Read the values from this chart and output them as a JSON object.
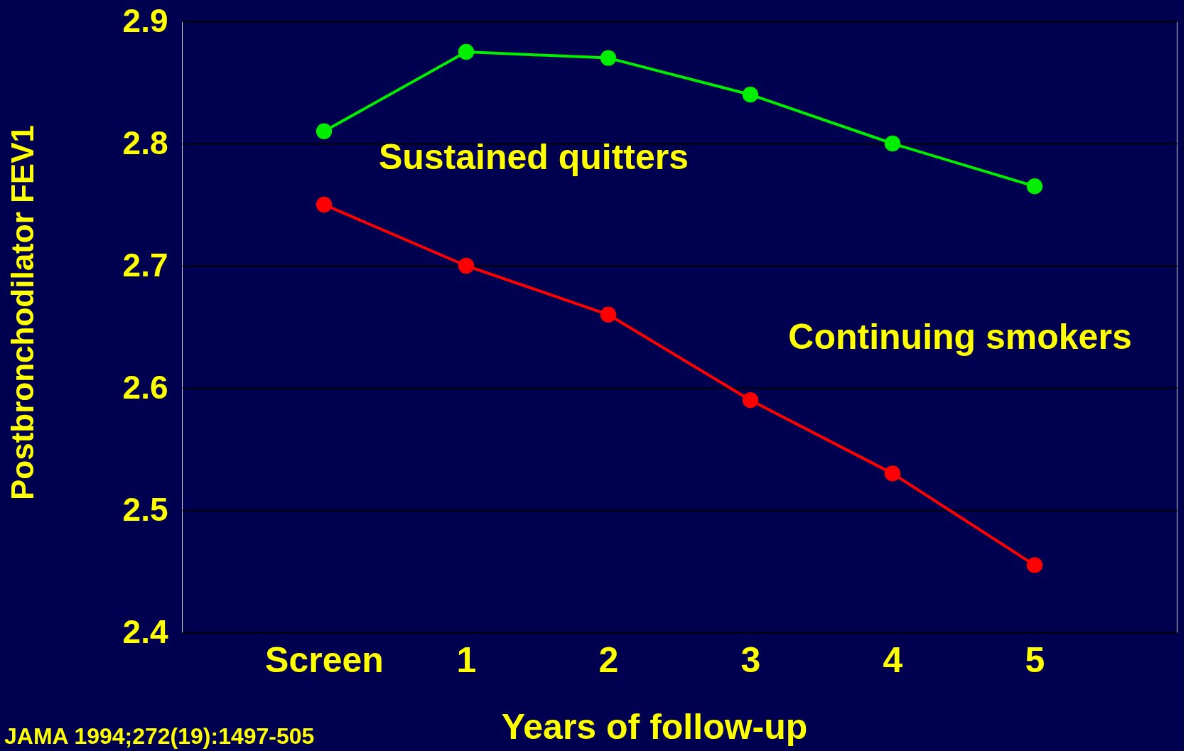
{
  "chart_data": {
    "type": "line",
    "xlabel": "Years of follow-up",
    "ylabel": "Postbronchodilator FEV1",
    "categories": [
      "Screen",
      "1",
      "2",
      "3",
      "4",
      "5"
    ],
    "series": [
      {
        "name": "Sustained quitters",
        "color": "#00ee00",
        "values": [
          2.81,
          2.875,
          2.87,
          2.84,
          2.8,
          2.765
        ]
      },
      {
        "name": "Continuing smokers",
        "color": "#ff0000",
        "values": [
          2.75,
          2.7,
          2.66,
          2.59,
          2.53,
          2.455
        ]
      }
    ],
    "ylim": [
      2.4,
      2.9
    ],
    "yticks": [
      2.4,
      2.5,
      2.6,
      2.7,
      2.8,
      2.9
    ],
    "grid": "y",
    "marker": "circle",
    "line_style": "solid",
    "legend": false,
    "annotations": [
      "JAMA 1994;272(19):1497-505"
    ]
  }
}
